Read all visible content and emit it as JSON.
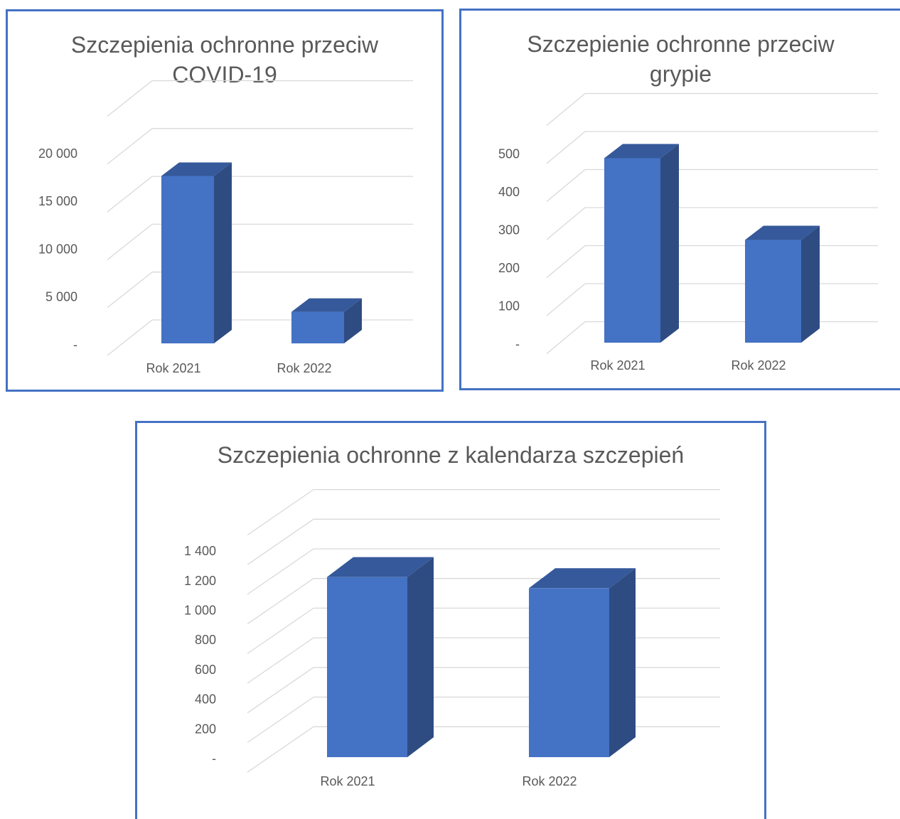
{
  "charts": [
    {
      "title_lines": [
        "Szczepienia ochronne przeciw",
        "COVID-19"
      ]
    },
    {
      "title_lines": [
        "Szczepienie ochronne przeciw",
        "grypie"
      ]
    },
    {
      "title_lines": [
        "Szczepienia ochronne z kalendarza szczepień"
      ]
    }
  ],
  "chart_data": [
    {
      "type": "bar",
      "title": "Szczepienia ochronne przeciw COVID-19",
      "categories": [
        "Rok 2021",
        "Rok 2022"
      ],
      "values": [
        17500,
        3300
      ],
      "y_ticks": [
        "-",
        "5 000",
        "10 000",
        "15 000",
        "20 000"
      ],
      "ylim": [
        0,
        20000
      ],
      "gridlines": true,
      "style": "3d-column",
      "bar_color": "#4472c4"
    },
    {
      "type": "bar",
      "title": "Szczepienie ochronne przeciw grypie",
      "categories": [
        "Rok 2021",
        "Rok 2022"
      ],
      "values": [
        485,
        270
      ],
      "y_ticks": [
        "-",
        "100",
        "200",
        "300",
        "400",
        "500"
      ],
      "ylim": [
        0,
        500
      ],
      "gridlines": true,
      "style": "3d-column",
      "bar_color": "#4472c4"
    },
    {
      "type": "bar",
      "title": "Szczepienia ochronne z kalendarza szczepień",
      "categories": [
        "Rok 2021",
        "Rok 2022"
      ],
      "values": [
        1215,
        1140
      ],
      "y_ticks": [
        "-",
        "200",
        "400",
        "600",
        "800",
        "1 000",
        "1 200",
        "1 400"
      ],
      "ylim": [
        0,
        1400
      ],
      "gridlines": true,
      "style": "3d-column",
      "bar_color": "#4472c4"
    }
  ]
}
